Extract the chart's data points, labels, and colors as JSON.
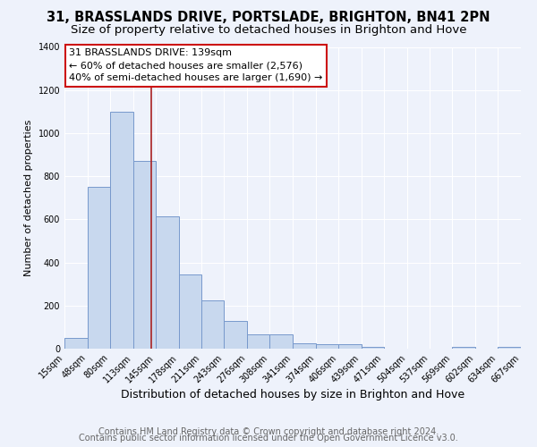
{
  "title": "31, BRASSLANDS DRIVE, PORTSLADE, BRIGHTON, BN41 2PN",
  "subtitle": "Size of property relative to detached houses in Brighton and Hove",
  "xlabel": "Distribution of detached houses by size in Brighton and Hove",
  "ylabel": "Number of detached properties",
  "bar_edges": [
    15,
    48,
    80,
    113,
    145,
    178,
    211,
    243,
    276,
    308,
    341,
    374,
    406,
    439,
    471,
    504,
    537,
    569,
    602,
    634,
    667
  ],
  "bar_heights": [
    50,
    750,
    1100,
    870,
    615,
    345,
    225,
    130,
    65,
    65,
    25,
    20,
    20,
    10,
    0,
    0,
    0,
    10,
    0,
    10
  ],
  "bar_color": "#c8d8ee",
  "bar_edge_color": "#7799cc",
  "vline_x": 139,
  "vline_color": "#aa2222",
  "annotation_text": "31 BRASSLANDS DRIVE: 139sqm\n← 60% of detached houses are smaller (2,576)\n40% of semi-detached houses are larger (1,690) →",
  "ylim": [
    0,
    1400
  ],
  "yticks": [
    0,
    200,
    400,
    600,
    800,
    1000,
    1200,
    1400
  ],
  "tick_labels": [
    "15sqm",
    "48sqm",
    "80sqm",
    "113sqm",
    "145sqm",
    "178sqm",
    "211sqm",
    "243sqm",
    "276sqm",
    "308sqm",
    "341sqm",
    "374sqm",
    "406sqm",
    "439sqm",
    "471sqm",
    "504sqm",
    "537sqm",
    "569sqm",
    "602sqm",
    "634sqm",
    "667sqm"
  ],
  "footer1": "Contains HM Land Registry data © Crown copyright and database right 2024.",
  "footer2": "Contains public sector information licensed under the Open Government Licence v3.0.",
  "background_color": "#eef2fb",
  "grid_color": "#ffffff",
  "title_fontsize": 10.5,
  "subtitle_fontsize": 9.5,
  "xlabel_fontsize": 9,
  "ylabel_fontsize": 8,
  "tick_fontsize": 7,
  "annot_fontsize": 8,
  "footer_fontsize": 7
}
